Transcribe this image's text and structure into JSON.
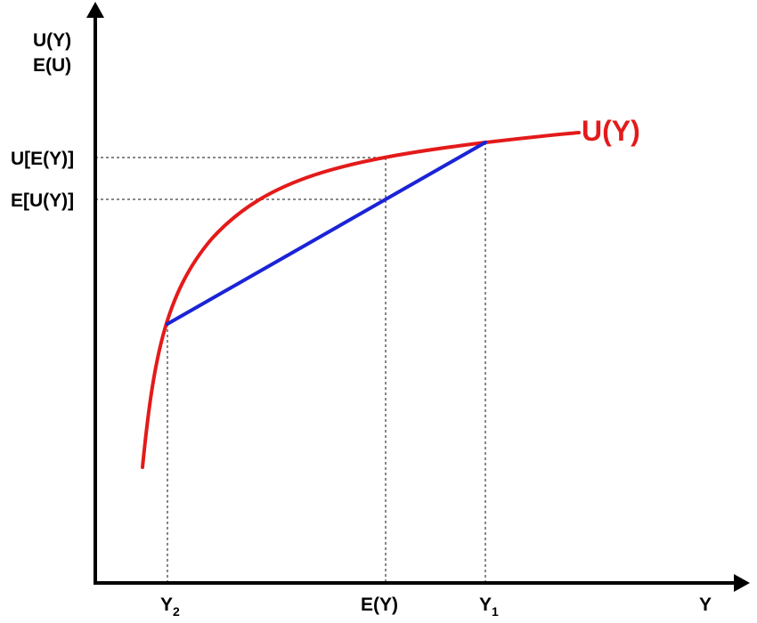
{
  "y_axis_label_line1": "U(Y)",
  "y_axis_label_line2": "E(U)",
  "x_axis_label": "Y",
  "curve_label": "U(Y)",
  "tick_u_of_ey": "U[E(Y)]",
  "tick_eu_of_y": "E[U(Y)]",
  "tick_y2_base": "Y",
  "tick_y2_sub": "2",
  "tick_ey": "E(Y)",
  "tick_y1_base": "Y",
  "tick_y1_sub": "1",
  "colors": {
    "utility_curve": "#e41a1a",
    "chord": "#1a24d6",
    "guides": "#888888",
    "axes": "#000000"
  },
  "icons": [
    "y-axis-arrow-icon",
    "x-axis-arrow-icon"
  ]
}
